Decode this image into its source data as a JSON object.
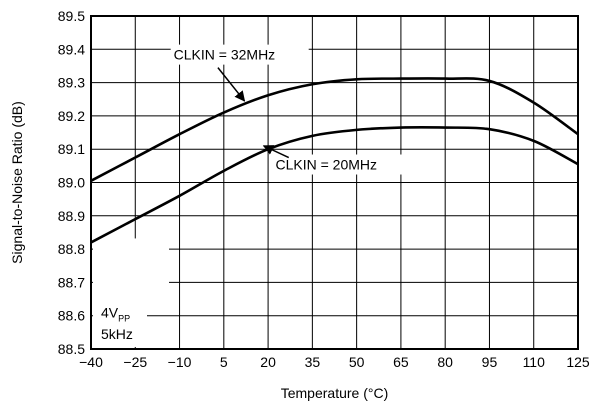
{
  "chart_data": {
    "type": "line",
    "xlabel": "Temperature (°C)",
    "ylabel": "Signal-to-Noise Ratio (dB)",
    "xlim": [
      -40,
      125
    ],
    "ylim": [
      88.5,
      89.5
    ],
    "grid": true,
    "x_ticks": [
      -40,
      -25,
      -10,
      5,
      20,
      35,
      50,
      65,
      80,
      95,
      110,
      125
    ],
    "x_tick_labels": [
      "−40",
      "−25",
      "−10",
      "5",
      "20",
      "35",
      "50",
      "65",
      "80",
      "95",
      "110",
      "125"
    ],
    "y_ticks": [
      88.5,
      88.6,
      88.7,
      88.8,
      88.9,
      89.0,
      89.1,
      89.2,
      89.3,
      89.4,
      89.5
    ],
    "y_tick_labels": [
      "88.5",
      "88.6",
      "88.7",
      "88.8",
      "88.9",
      "89.0",
      "89.1",
      "89.2",
      "89.3",
      "89.4",
      "89.5"
    ],
    "series": [
      {
        "name": "CLKIN = 32MHz",
        "x": [
          -40,
          -25,
          -10,
          5,
          20,
          35,
          50,
          65,
          80,
          95,
          110,
          125
        ],
        "values": [
          89.005,
          89.075,
          89.145,
          89.21,
          89.262,
          89.295,
          89.31,
          89.312,
          89.312,
          89.305,
          89.24,
          89.145
        ]
      },
      {
        "name": "CLKIN = 20MHz",
        "x": [
          -40,
          -25,
          -10,
          5,
          20,
          35,
          50,
          65,
          80,
          95,
          110,
          125
        ],
        "values": [
          88.82,
          88.89,
          88.96,
          89.035,
          89.1,
          89.14,
          89.158,
          89.165,
          89.165,
          89.16,
          89.125,
          89.055
        ]
      }
    ],
    "annotations": [
      {
        "text": "CLKIN = 32MHz",
        "points_to": "CLKIN = 32MHz"
      },
      {
        "text": "CLKIN = 20MHz",
        "points_to": "CLKIN = 20MHz"
      }
    ],
    "conditions": {
      "line1_main": "4V",
      "line1_sub": "PP",
      "line2": "5kHz"
    }
  }
}
